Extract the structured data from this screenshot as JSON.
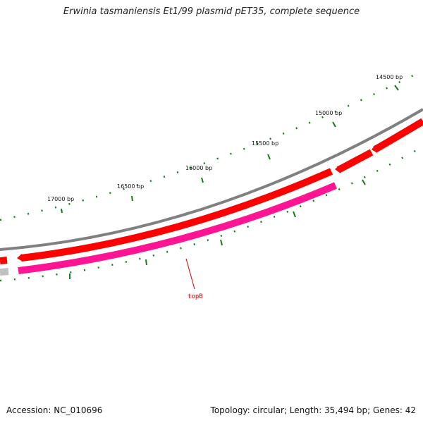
{
  "title": "Erwinia tasmaniensis Et1/99 plasmid pET35, complete sequence",
  "footer": {
    "accession": "Accession: NC_010696",
    "summary": "Topology: circular; Length: 35,494 bp; Genes: 42"
  },
  "colors": {
    "backbone": "#808080",
    "forward_gene": "#ff0000",
    "reverse_gene": "#ff1493",
    "unknown_gene": "#c0c0c0",
    "ticks": "#1a7a1a",
    "gene_label": "#d00000"
  },
  "scale_labels": [
    "14500 bp",
    "15000 bp",
    "15500 bp",
    "16000 bp",
    "16500 bp",
    "17000 bp"
  ],
  "gene_labels": [
    "topB"
  ]
}
